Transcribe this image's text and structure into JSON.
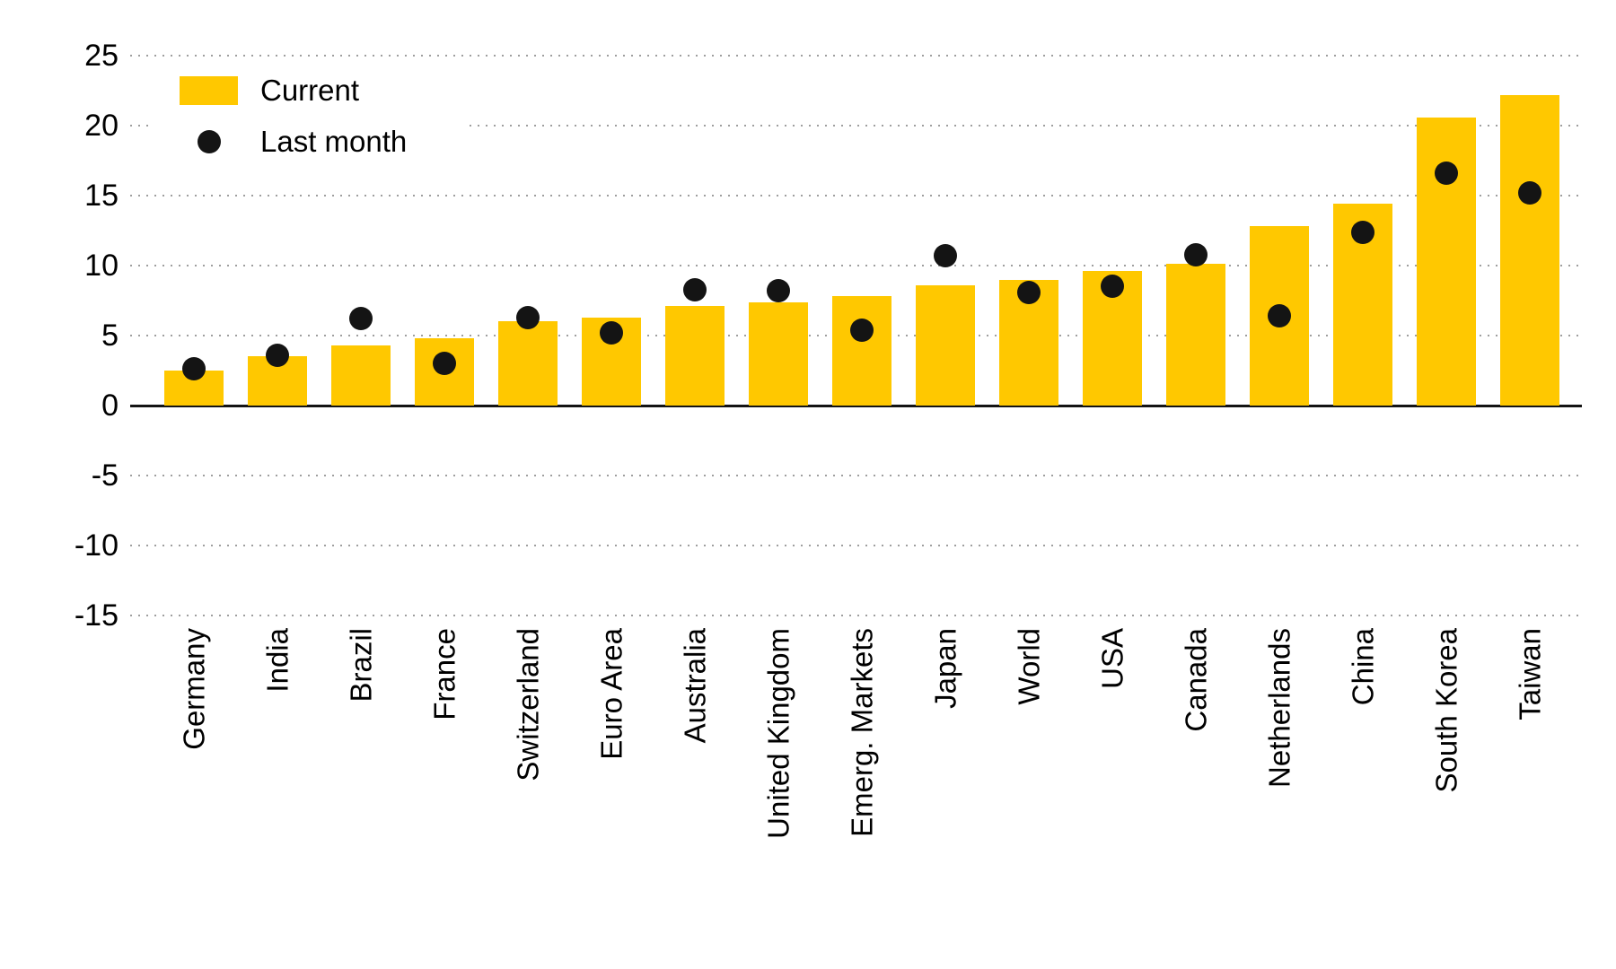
{
  "legend": {
    "current": "Current",
    "last_month": "Last month"
  },
  "colors": {
    "bar": "#FFC800",
    "dot": "#141414",
    "grid": "#9E9E9E",
    "axis": "#141414",
    "background": "#FFFFFF",
    "text": "#000000"
  },
  "chart_data": {
    "type": "bar",
    "title": "",
    "xlabel": "",
    "ylabel": "",
    "categories": [
      "Germany",
      "India",
      "Brazil",
      "France",
      "Switzerland",
      "Euro Area",
      "Australia",
      "United Kingdom",
      "Emerg. Markets",
      "Japan",
      "World",
      "USA",
      "Canada",
      "Netherlands",
      "China",
      "South Korea",
      "Taiwan"
    ],
    "series": [
      {
        "name": "Current",
        "type": "bar",
        "values": [
          2.5,
          3.5,
          4.3,
          4.8,
          6.0,
          6.3,
          7.1,
          7.4,
          7.8,
          8.6,
          9.0,
          9.6,
          10.1,
          12.8,
          14.4,
          20.6,
          22.2
        ]
      },
      {
        "name": "Last month",
        "type": "scatter",
        "values": [
          2.6,
          3.6,
          6.2,
          3.0,
          6.3,
          5.2,
          8.3,
          8.2,
          5.4,
          10.7,
          8.1,
          8.5,
          10.8,
          6.4,
          12.4,
          16.6,
          15.2
        ]
      }
    ],
    "ylim": [
      -15,
      25
    ],
    "yticks": [
      25,
      20,
      15,
      10,
      5,
      0,
      -5,
      -10,
      -15
    ],
    "grid": "horizontal-dotted",
    "legend_position": "top-left"
  }
}
